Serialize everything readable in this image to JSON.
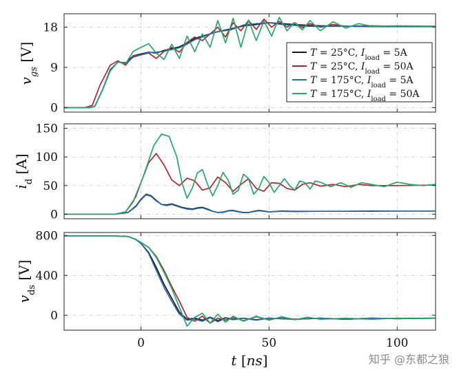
{
  "chart_data": {
    "type": "line",
    "title": "",
    "xlabel": "t [ns]",
    "xlim": [
      -30,
      115
    ],
    "xticks": [
      0,
      50,
      100
    ],
    "series_names": [
      "T = 25°C, I_load = 5A",
      "T = 25°C, I_load = 50A",
      "T = 175°C, I_load = 5A",
      "T = 175°C, I_load = 50A"
    ],
    "colors": [
      "#14142a",
      "#b5242e",
      "#2669a3",
      "#22a86b"
    ],
    "legend": {
      "position": "top-right (top panel)",
      "entries": [
        {
          "label": "T = 25°C, I_load = 5A",
          "color": "#14142a"
        },
        {
          "label": "T = 25°C, I_load = 50A",
          "color": "#b5242e"
        },
        {
          "label": "T = 175°C, I_load = 5A",
          "color": "#2669a3"
        },
        {
          "label": "T = 175°C, I_load = 50A",
          "color": "#22a86b"
        }
      ]
    },
    "panels": [
      {
        "id": "vgs",
        "ylabel": "v_gs [V]",
        "ylim": [
          -1,
          21
        ],
        "yticks": [
          0,
          9,
          18
        ],
        "series": [
          {
            "name": "T = 25°C, I_load = 5A",
            "x": [
              -30,
              -20,
              -18,
              -15,
              -12,
              -9,
              -6,
              -3,
              0,
              3,
              6,
              9,
              12,
              15,
              18,
              21,
              24,
              27,
              30,
              35,
              40,
              45,
              50,
              55,
              60,
              65,
              70,
              80,
              90,
              100,
              115
            ],
            "y": [
              0,
              0,
              0.3,
              4,
              8.5,
              10.2,
              10,
              11.6,
              12,
              12.4,
              12.2,
              12.8,
              13.2,
              13.6,
              14.5,
              15.5,
              16,
              16.5,
              17,
              17.6,
              18.3,
              18.6,
              19,
              18.8,
              18.6,
              18.4,
              18.3,
              18.2,
              18.2,
              18.2,
              18.2
            ]
          },
          {
            "name": "T = 25°C, I_load = 50A",
            "x": [
              -30,
              -22,
              -19,
              -16,
              -12,
              -9,
              -6,
              -3,
              0,
              3,
              6,
              9,
              12,
              15,
              18,
              21,
              24,
              27,
              30,
              33,
              36,
              39,
              42,
              45,
              48,
              51,
              54,
              57,
              60,
              63,
              66,
              70,
              75,
              80,
              90,
              100,
              115
            ],
            "y": [
              0,
              0,
              0.5,
              5,
              9.5,
              10.5,
              9.5,
              11.6,
              11.8,
              12.2,
              11,
              12.6,
              13.5,
              12.4,
              14.6,
              15.8,
              15,
              16.5,
              18,
              15.8,
              19,
              17.2,
              19.5,
              17.5,
              19.8,
              18,
              19.3,
              18,
              19,
              17.9,
              18.8,
              18,
              18.6,
              18.2,
              18.3,
              18.2,
              18.2
            ]
          },
          {
            "name": "T = 175°C, I_load = 5A",
            "x": [
              -30,
              -20,
              -18,
              -15,
              -12,
              -9,
              -6,
              -3,
              0,
              3,
              6,
              9,
              12,
              15,
              18,
              21,
              24,
              27,
              30,
              35,
              40,
              45,
              50,
              55,
              60,
              65,
              70,
              80,
              90,
              100,
              115
            ],
            "y": [
              0,
              0,
              0.3,
              4,
              8.2,
              10.3,
              9.8,
              11.3,
              11.8,
              12.3,
              12.4,
              12.6,
              13,
              13.4,
              14.2,
              15.2,
              15.8,
              16.5,
              17,
              17.4,
              18.5,
              18.8,
              19,
              18.6,
              18.4,
              18.2,
              18.2,
              18.2,
              18.1,
              18.1,
              18.1
            ]
          },
          {
            "name": "T = 175°C, I_load = 50A",
            "x": [
              -30,
              -20,
              -18,
              -15,
              -12,
              -9,
              -6,
              -3,
              0,
              3,
              6,
              9,
              12,
              15,
              18,
              21,
              24,
              27,
              30,
              33,
              36,
              39,
              42,
              45,
              48,
              51,
              54,
              57,
              60,
              63,
              66,
              70,
              75,
              80,
              85,
              90,
              100,
              115
            ],
            "y": [
              0,
              0,
              0.3,
              4,
              8.3,
              10.2,
              9.8,
              12.6,
              13.5,
              14.3,
              12.2,
              10.8,
              14.2,
              11,
              16,
              12.5,
              16.5,
              13.5,
              19.5,
              14.5,
              20,
              13.5,
              19.6,
              15,
              19.4,
              16,
              20.2,
              17.2,
              19,
              17.4,
              19.5,
              17.2,
              19.2,
              17.8,
              18.8,
              18.2,
              18.3,
              18.2
            ]
          }
        ]
      },
      {
        "id": "id",
        "ylabel": "i_d [A]",
        "ylim": [
          -8,
          158
        ],
        "yticks": [
          0,
          50,
          100,
          150
        ],
        "series": [
          {
            "name": "T = 25°C, I_load = 5A",
            "x": [
              -30,
              -10,
              -5,
              -2,
              0,
              2,
              4,
              6,
              8,
              10,
              12,
              14,
              16,
              18,
              20,
              22,
              24,
              26,
              28,
              30,
              32,
              34,
              36,
              38,
              40,
              42,
              44,
              46,
              48,
              50,
              55,
              60,
              70,
              80,
              90,
              100,
              115
            ],
            "y": [
              0,
              0,
              3,
              14,
              26,
              35,
              32,
              24,
              17,
              16,
              18,
              15,
              12,
              10,
              9,
              11,
              12,
              9,
              5,
              3,
              3.5,
              6,
              6.5,
              4.5,
              3,
              3,
              5,
              6.5,
              5.5,
              4,
              5.5,
              5,
              5,
              5,
              5.5,
              5.5,
              5.5
            ]
          },
          {
            "name": "T = 25°C, I_load = 50A",
            "x": [
              -30,
              -10,
              -6,
              -3,
              0,
              3,
              6,
              9,
              12,
              15,
              18,
              21,
              24,
              27,
              30,
              33,
              36,
              39,
              42,
              45,
              48,
              51,
              54,
              57,
              60,
              63,
              66,
              70,
              75,
              80,
              85,
              90,
              100,
              115
            ],
            "y": [
              0,
              0,
              4,
              22,
              55,
              90,
              106,
              86,
              60,
              50,
              63,
              58,
              42,
              46,
              65,
              55,
              40,
              52,
              62,
              45,
              40,
              55,
              54,
              45,
              42,
              52,
              55,
              49,
              52,
              48,
              52,
              50,
              50,
              51
            ]
          },
          {
            "name": "T = 175°C, I_load = 5A",
            "x": [
              -30,
              -10,
              -5,
              -2,
              0,
              2,
              4,
              6,
              8,
              10,
              12,
              14,
              16,
              18,
              20,
              22,
              24,
              26,
              28,
              30,
              32,
              34,
              36,
              38,
              40,
              42,
              44,
              46,
              48,
              50,
              55,
              60,
              70,
              80,
              90,
              100,
              115
            ],
            "y": [
              0,
              0,
              3,
              13,
              25,
              34,
              31,
              23,
              17,
              15,
              17,
              14,
              11,
              9,
              8,
              10,
              11,
              8,
              5,
              3,
              3,
              5.5,
              6,
              4,
              2.5,
              3,
              4.5,
              6,
              5,
              4,
              5,
              4.5,
              5,
              5,
              5,
              5.5,
              5.5
            ]
          },
          {
            "name": "T = 175°C, I_load = 50A",
            "x": [
              -30,
              -10,
              -6,
              -2,
              2,
              5,
              8,
              11,
              14,
              16,
              18,
              20,
              22,
              24,
              26,
              28,
              30,
              32,
              34,
              36,
              38,
              40,
              42,
              44,
              46,
              48,
              50,
              52,
              54,
              56,
              58,
              60,
              62,
              64,
              66,
              68,
              70,
              74,
              78,
              82,
              86,
              90,
              95,
              100,
              105,
              110,
              115
            ],
            "y": [
              0,
              0,
              4,
              30,
              80,
              120,
              140,
              136,
              100,
              55,
              28,
              45,
              72,
              78,
              52,
              32,
              50,
              73,
              60,
              35,
              42,
              70,
              62,
              35,
              45,
              66,
              55,
              38,
              50,
              62,
              50,
              42,
              58,
              55,
              44,
              58,
              56,
              48,
              55,
              47,
              55,
              52,
              48,
              56,
              52,
              50,
              52
            ]
          }
        ]
      },
      {
        "id": "vds",
        "ylabel": "v_ds [V]",
        "ylim": [
          -150,
          830
        ],
        "yticks": [
          0,
          400,
          800
        ],
        "series": [
          {
            "name": "T = 25°C, I_load = 5A",
            "x": [
              -30,
              -10,
              -5,
              -2,
              0,
              3,
              6,
              9,
              12,
              15,
              18,
              21,
              24,
              27,
              30,
              33,
              36,
              40,
              45,
              50,
              60,
              70,
              80,
              90,
              100,
              115
            ],
            "y": [
              795,
              795,
              790,
              760,
              720,
              630,
              480,
              310,
              170,
              30,
              -40,
              -30,
              -50,
              -20,
              -55,
              -25,
              -40,
              -30,
              -45,
              -30,
              -40,
              -30,
              -40,
              -30,
              -35,
              -30
            ]
          },
          {
            "name": "T = 25°C, I_load = 50A",
            "x": [
              -30,
              -10,
              -5,
              -2,
              0,
              3,
              6,
              9,
              12,
              15,
              18,
              21,
              24,
              27,
              30,
              33,
              36,
              40,
              45,
              50,
              55,
              60,
              70,
              80,
              90,
              100,
              115
            ],
            "y": [
              795,
              795,
              790,
              760,
              730,
              680,
              590,
              450,
              290,
              140,
              -20,
              -60,
              -10,
              -80,
              -30,
              -50,
              -20,
              -55,
              -15,
              -45,
              -20,
              -40,
              -30,
              -40,
              -30,
              -35,
              -30
            ]
          },
          {
            "name": "T = 175°C, I_load = 5A",
            "x": [
              -30,
              -10,
              -5,
              -2,
              0,
              3,
              6,
              9,
              12,
              15,
              18,
              21,
              24,
              27,
              30,
              33,
              36,
              40,
              45,
              50,
              60,
              70,
              80,
              90,
              100,
              115
            ],
            "y": [
              795,
              795,
              790,
              760,
              720,
              620,
              450,
              280,
              140,
              10,
              -50,
              -40,
              -60,
              -25,
              -65,
              -30,
              -45,
              -30,
              -50,
              -30,
              -40,
              -30,
              -40,
              -30,
              -35,
              -30
            ]
          },
          {
            "name": "T = 175°C, I_load = 50A",
            "x": [
              -30,
              -10,
              -5,
              -2,
              0,
              3,
              6,
              9,
              12,
              15,
              18,
              21,
              24,
              27,
              30,
              33,
              36,
              40,
              45,
              50,
              55,
              60,
              65,
              70,
              80,
              90,
              100,
              115
            ],
            "y": [
              795,
              795,
              790,
              760,
              730,
              680,
              580,
              430,
              270,
              80,
              -110,
              -20,
              20,
              -80,
              10,
              -70,
              -10,
              -60,
              -10,
              -50,
              -15,
              -45,
              -20,
              -40,
              -30,
              -40,
              -30,
              -30
            ]
          }
        ]
      }
    ]
  },
  "watermark": "知乎 @东都之狼"
}
